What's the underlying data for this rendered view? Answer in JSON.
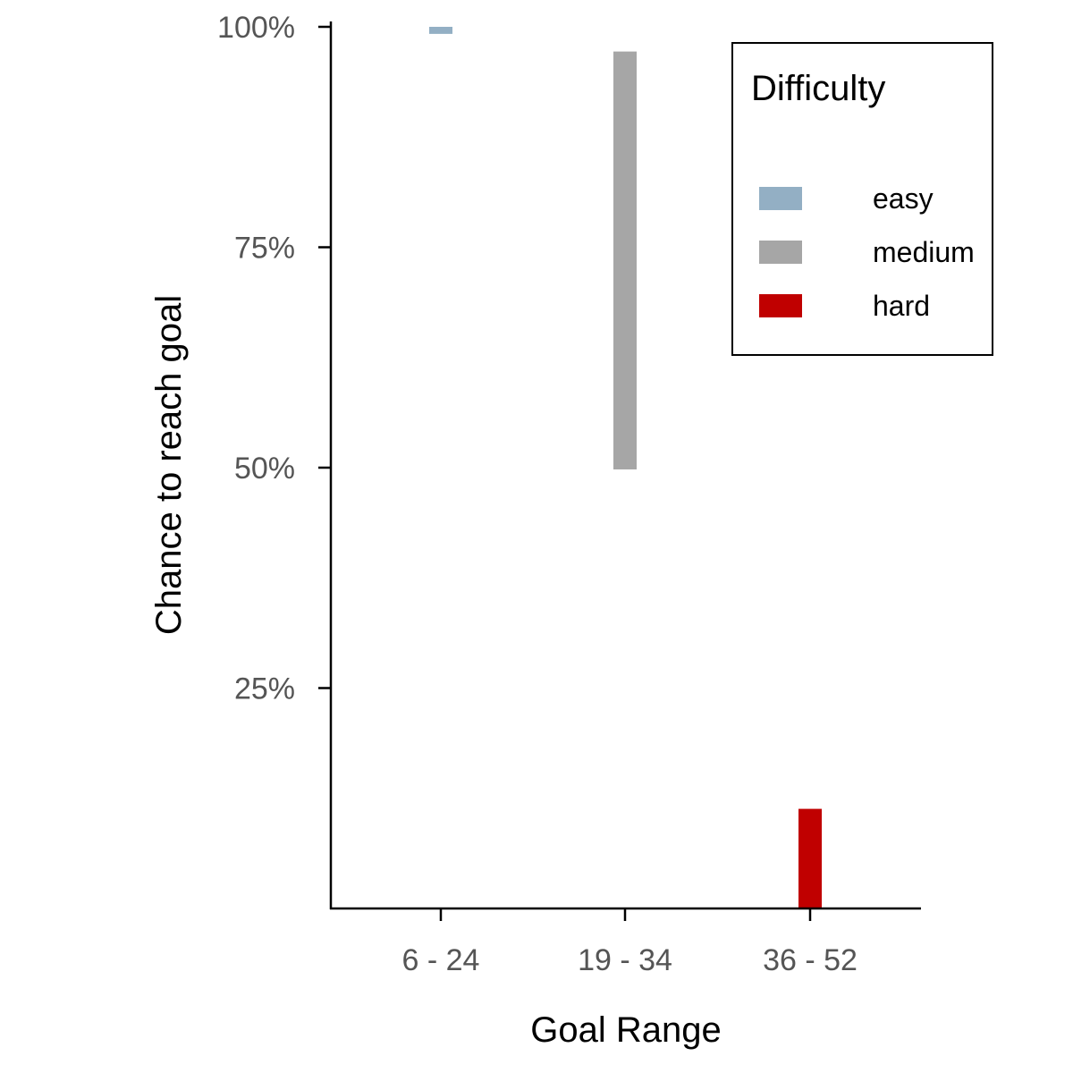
{
  "chart_data": {
    "type": "bar",
    "title": "",
    "xlabel": "Goal Range",
    "ylabel": "Chance to reach goal",
    "categories": [
      "6 - 24",
      "19 - 34",
      "36 - 52"
    ],
    "ylim": [
      0,
      100
    ],
    "yticks": [
      25,
      50,
      75,
      100
    ],
    "ytick_labels": [
      "25%",
      "50%",
      "75%",
      "100%"
    ],
    "grid": false,
    "legend": {
      "title": "Difficulty",
      "position": "top-right",
      "entries": [
        {
          "name": "easy",
          "color": "#93afc4"
        },
        {
          "name": "medium",
          "color": "#a6a6a6"
        },
        {
          "name": "hard",
          "color": "#c00000"
        }
      ]
    },
    "series": [
      {
        "name": "easy",
        "color": "#93afc4",
        "ranges": [
          {
            "category": "6 - 24",
            "low": 99.2,
            "high": 100
          }
        ]
      },
      {
        "name": "medium",
        "color": "#a6a6a6",
        "ranges": [
          {
            "category": "19 - 34",
            "low": 49.8,
            "high": 97.2
          }
        ]
      },
      {
        "name": "hard",
        "color": "#c00000",
        "ranges": [
          {
            "category": "36 - 52",
            "low": 0,
            "high": 11.3
          }
        ]
      }
    ]
  }
}
